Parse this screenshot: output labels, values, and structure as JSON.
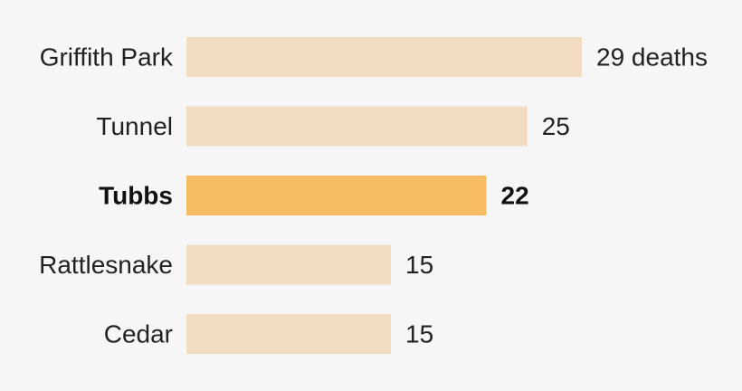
{
  "chart_data": {
    "type": "bar",
    "orientation": "horizontal",
    "categories": [
      "Griffith Park",
      "Tunnel",
      "Tubbs",
      "Rattlesnake",
      "Cedar"
    ],
    "values": [
      29,
      25,
      22,
      15,
      15
    ],
    "value_labels": [
      "29 deaths",
      "25",
      "22",
      "15",
      "15"
    ],
    "highlight": "Tubbs",
    "colors": {
      "bar": "#f2dcc1",
      "highlight_bar": "#f7bb62",
      "background": "#f6f6f6"
    },
    "title": "",
    "xlabel": "",
    "ylabel": "",
    "xlim": [
      0,
      29
    ],
    "grid": false,
    "legend": "none"
  }
}
